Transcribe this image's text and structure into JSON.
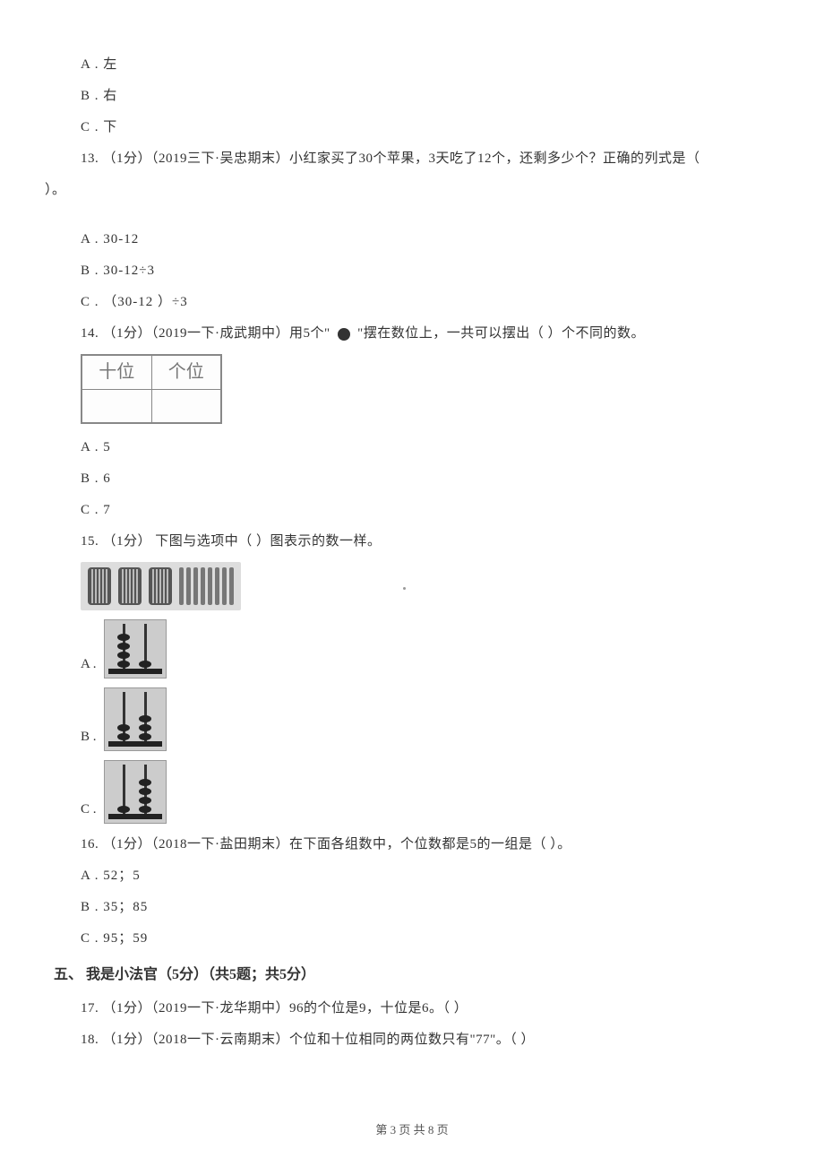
{
  "options_block1": {
    "a": "A . 左",
    "b": "B . 右",
    "c": "C . 下"
  },
  "q13": {
    "text": "13. （1分）（2019三下·吴忠期末）小红家买了30个苹果，3天吃了12个，还剩多少个？正确的列式是（",
    "tail": "）。",
    "opt_a": "A . 30-12",
    "opt_b": "B . 30-12÷3",
    "opt_c": "C . （30-12 ）÷3"
  },
  "q14": {
    "text_pre": "14. （1分）（2019一下·成武期中）用5个\"",
    "text_post": "\"摆在数位上，一共可以摆出（    ）个不同的数。",
    "table_headers": [
      "十位",
      "个位"
    ],
    "opt_a": "A . 5",
    "opt_b": "B . 6",
    "opt_c": "C . 7"
  },
  "q15": {
    "text": "15. （1分） 下图与选项中（    ）图表示的数一样。",
    "opt_a_label": "A .",
    "opt_b_label": "B .",
    "opt_c_label": "C .",
    "stimulus": {
      "bundles": 3,
      "sticks": 8
    },
    "abacus_a": {
      "rod1_height": 50,
      "rod1_beads": 4,
      "rod2_height": 50,
      "rod2_beads": 1
    },
    "abacus_b": {
      "rod1_height": 55,
      "rod1_beads": 2,
      "rod2_height": 55,
      "rod2_beads": 3
    },
    "abacus_c": {
      "rod1_height": 55,
      "rod1_beads": 1,
      "rod2_height": 55,
      "rod2_beads": 4
    }
  },
  "q16": {
    "text": "16. （1分）（2018一下·盐田期末）在下面各组数中，个位数都是5的一组是（    ）。",
    "opt_a": "A . 52；5",
    "opt_b": "B . 35；85",
    "opt_c": "C . 95；59"
  },
  "section5": {
    "header": "五、 我是小法官（5分）（共5题；共5分）"
  },
  "q17": {
    "text": "17. （1分）（2019一下·龙华期中）96的个位是9，十位是6。（    ）"
  },
  "q18": {
    "text": "18. （1分）（2018一下·云南期末）个位和十位相同的两位数只有\"77\"。（    ）"
  },
  "footer": "第 3 页 共 8 页",
  "colors": {
    "background": "#ffffff",
    "text": "#333333",
    "table_border": "#888888",
    "img_bg": "#dddddd"
  }
}
